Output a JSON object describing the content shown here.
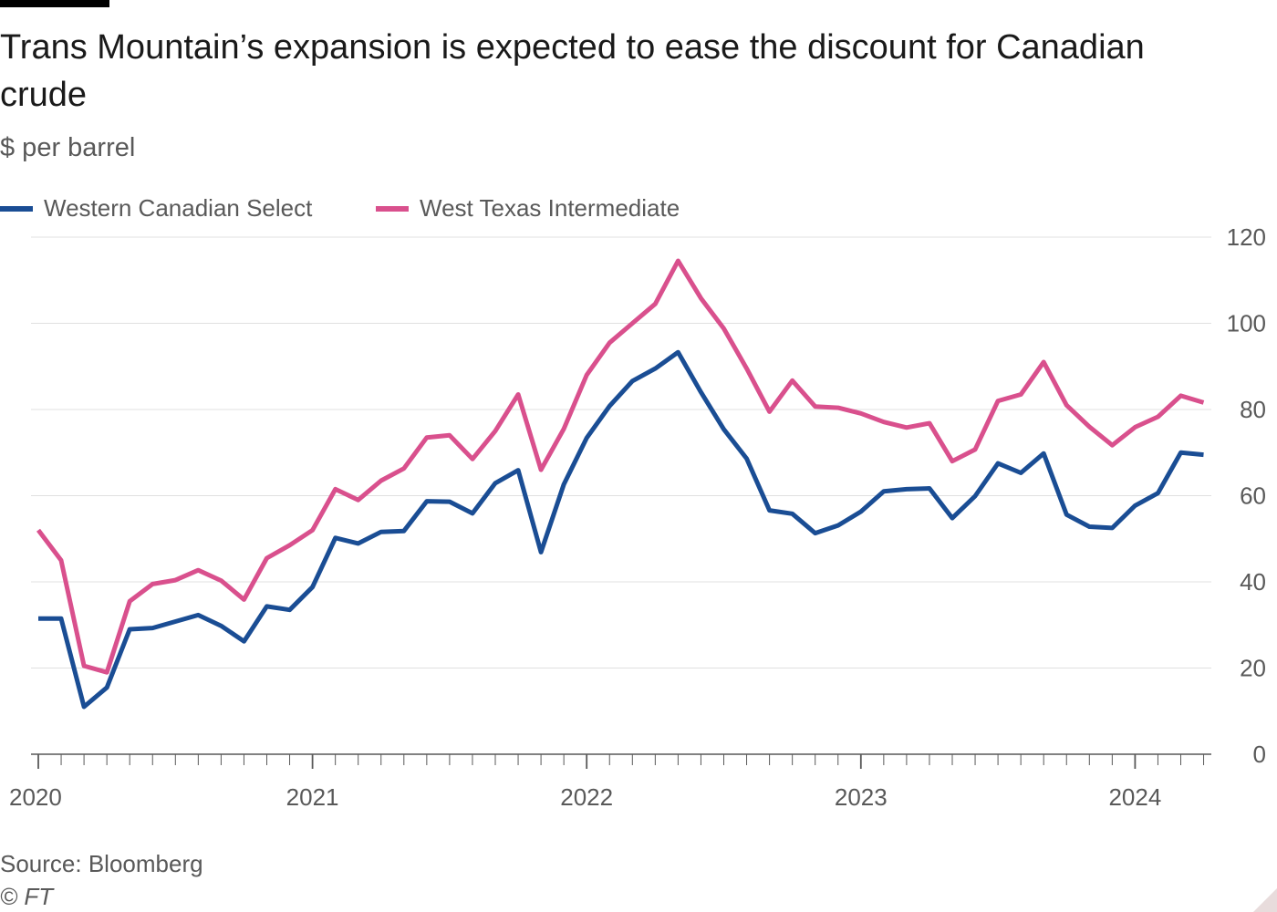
{
  "header": {
    "title": "Trans Mountain’s expansion is expected to ease the discount for Canadian crude",
    "subtitle": "$ per barrel"
  },
  "footer": {
    "source": "Source: Bloomberg",
    "copyright": "© FT"
  },
  "colors": {
    "wcs": "#1a4d94",
    "wti": "#d9508d",
    "grid": "#e0e0e0",
    "axis": "#595959"
  },
  "chart_data": {
    "type": "line",
    "title": "Trans Mountain’s expansion is expected to ease the discount for Canadian crude",
    "ylabel": "$ per barrel",
    "xlabel": "",
    "ylim": [
      0,
      120
    ],
    "yticks": [
      0,
      20,
      40,
      60,
      80,
      100,
      120
    ],
    "x_range": [
      "2020-01",
      "2024-04"
    ],
    "x_tick_labels": [
      "2020",
      "2021",
      "2022",
      "2023",
      "2024"
    ],
    "grid": true,
    "legend_position": "top-left",
    "x": [
      "2020-01",
      "2020-02",
      "2020-03",
      "2020-04",
      "2020-05",
      "2020-06",
      "2020-07",
      "2020-08",
      "2020-09",
      "2020-10",
      "2020-11",
      "2020-12",
      "2021-01",
      "2021-02",
      "2021-03",
      "2021-04",
      "2021-05",
      "2021-06",
      "2021-07",
      "2021-08",
      "2021-09",
      "2021-10",
      "2021-11",
      "2021-12",
      "2022-01",
      "2022-02",
      "2022-03",
      "2022-04",
      "2022-05",
      "2022-06",
      "2022-07",
      "2022-08",
      "2022-09",
      "2022-10",
      "2022-11",
      "2022-12",
      "2023-01",
      "2023-02",
      "2023-03",
      "2023-04",
      "2023-05",
      "2023-06",
      "2023-07",
      "2023-08",
      "2023-09",
      "2023-10",
      "2023-11",
      "2023-12",
      "2024-01",
      "2024-02",
      "2024-03",
      "2024-04"
    ],
    "series": [
      {
        "name": "Western Canadian Select",
        "color": "#1a4d94",
        "values": [
          31.5,
          31.5,
          11.0,
          15.5,
          29.0,
          29.3,
          30.8,
          32.3,
          29.8,
          26.2,
          34.3,
          33.5,
          38.8,
          50.2,
          48.9,
          51.6,
          51.8,
          58.7,
          58.6,
          55.9,
          62.9,
          65.9,
          46.9,
          62.6,
          73.4,
          80.8,
          86.6,
          89.5,
          93.3,
          84.0,
          75.4,
          68.6,
          56.6,
          55.8,
          51.3,
          53.1,
          56.3,
          61.0,
          61.5,
          61.7,
          54.8,
          59.9,
          67.5,
          65.3,
          69.8,
          55.6,
          52.8,
          52.5,
          57.7,
          60.6,
          70.0,
          69.5
        ]
      },
      {
        "name": "West Texas Intermediate",
        "color": "#d9508d",
        "values": [
          52.0,
          45.0,
          20.5,
          19.0,
          35.5,
          39.5,
          40.4,
          42.7,
          40.3,
          35.9,
          45.5,
          48.5,
          52.0,
          61.5,
          59.0,
          63.5,
          66.3,
          73.5,
          74.0,
          68.5,
          75.0,
          83.5,
          66.0,
          75.5,
          88.0,
          95.5,
          100.0,
          104.5,
          114.5,
          105.8,
          98.8,
          89.5,
          79.5,
          86.7,
          80.7,
          80.4,
          79.1,
          77.1,
          75.8,
          76.8,
          68.0,
          70.7,
          82.0,
          83.5,
          91.0,
          81.0,
          76.0,
          71.7,
          75.9,
          78.3,
          83.2,
          81.6
        ]
      }
    ]
  }
}
